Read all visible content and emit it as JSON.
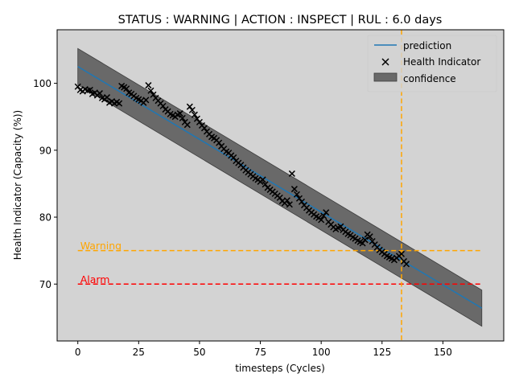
{
  "chart_data": {
    "type": "scatter",
    "title": "STATUS : WARNING | ACTION : INSPECT | RUL : 6.0 days",
    "xlabel": "timesteps (Cycles)",
    "ylabel": "Health Indicator (Capacity (%))",
    "xlim": [
      -8.5,
      175
    ],
    "ylim": [
      61.5,
      108
    ],
    "xticks": [
      0,
      25,
      50,
      75,
      100,
      125,
      150
    ],
    "yticks": [
      70,
      80,
      90,
      100
    ],
    "background": "#d3d3d3",
    "grid": false,
    "legend_position": "top-right",
    "legend": {
      "prediction": "prediction",
      "health_indicator": "Health Indicator",
      "confidence": "confidence"
    },
    "prediction": {
      "name": "prediction",
      "color": "#1f77b4",
      "x": [
        0,
        166
      ],
      "y": [
        102.5,
        66.4
      ]
    },
    "confidence": {
      "name": "confidence",
      "color": "#696969",
      "x": [
        0,
        166
      ],
      "upper": [
        105.2,
        69.1
      ],
      "lower": [
        99.8,
        63.7
      ]
    },
    "thresholds": [
      {
        "label": "Warning",
        "value": 75,
        "color": "#ffa500",
        "x_start": 0,
        "x_end": 166
      },
      {
        "label": "Alarm",
        "value": 70,
        "color": "#ff0000",
        "x_start": 0,
        "x_end": 166
      }
    ],
    "rul_marker": {
      "x": 133,
      "color": "#ffa500"
    },
    "health_indicator": {
      "name": "Health Indicator",
      "marker": "x",
      "color": "#000000",
      "points": [
        [
          0,
          99.5
        ],
        [
          1,
          99
        ],
        [
          2,
          98.8
        ],
        [
          3,
          99.1
        ],
        [
          4,
          98.9
        ],
        [
          5,
          99
        ],
        [
          6,
          98.4
        ],
        [
          7,
          98.6
        ],
        [
          8,
          98.2
        ],
        [
          9,
          98.5
        ],
        [
          10,
          97.8
        ],
        [
          11,
          97.6
        ],
        [
          12,
          97.9
        ],
        [
          13,
          97.1
        ],
        [
          14,
          97.3
        ],
        [
          15,
          97
        ],
        [
          16,
          97.2
        ],
        [
          17,
          97
        ],
        [
          18,
          99.6
        ],
        [
          19,
          99.4
        ],
        [
          20,
          99.2
        ],
        [
          21,
          98.6
        ],
        [
          22,
          98.4
        ],
        [
          23,
          98.1
        ],
        [
          24,
          97.8
        ],
        [
          25,
          97.6
        ],
        [
          26,
          97.4
        ],
        [
          27,
          97.1
        ],
        [
          28,
          97.5
        ],
        [
          29,
          99.7
        ],
        [
          30,
          98.9
        ],
        [
          31,
          98.3
        ],
        [
          32,
          97.8
        ],
        [
          33,
          97.4
        ],
        [
          34,
          97
        ],
        [
          35,
          96.6
        ],
        [
          36,
          96.1
        ],
        [
          37,
          95.8
        ],
        [
          38,
          95.4
        ],
        [
          39,
          95.2
        ],
        [
          40,
          95
        ],
        [
          41,
          95.3
        ],
        [
          42,
          95.5
        ],
        [
          43,
          94.8
        ],
        [
          44,
          94.2
        ],
        [
          45,
          93.8
        ],
        [
          46,
          96.5
        ],
        [
          47,
          96
        ],
        [
          48,
          95.3
        ],
        [
          49,
          94.7
        ],
        [
          50,
          94.2
        ],
        [
          51,
          93.7
        ],
        [
          52,
          93.3
        ],
        [
          53,
          92.8
        ],
        [
          54,
          92.4
        ],
        [
          55,
          92
        ],
        [
          56,
          91.8
        ],
        [
          57,
          91.5
        ],
        [
          58,
          91.1
        ],
        [
          59,
          90.6
        ],
        [
          60,
          90.2
        ],
        [
          61,
          89.8
        ],
        [
          62,
          89.6
        ],
        [
          63,
          89.2
        ],
        [
          64,
          88.9
        ],
        [
          65,
          88.4
        ],
        [
          66,
          88.1
        ],
        [
          67,
          87.8
        ],
        [
          68,
          87.4
        ],
        [
          69,
          87
        ],
        [
          70,
          86.7
        ],
        [
          71,
          86.4
        ],
        [
          72,
          86.1
        ],
        [
          73,
          85.8
        ],
        [
          74,
          85.6
        ],
        [
          75,
          85.3
        ],
        [
          76,
          85.6
        ],
        [
          77,
          84.9
        ],
        [
          78,
          84.4
        ],
        [
          79,
          84.1
        ],
        [
          80,
          83.8
        ],
        [
          81,
          83.5
        ],
        [
          82,
          83.2
        ],
        [
          83,
          82.9
        ],
        [
          84,
          82.4
        ],
        [
          85,
          82.1
        ],
        [
          86,
          82.5
        ],
        [
          87,
          81.9
        ],
        [
          88,
          86.5
        ],
        [
          89,
          84.2
        ],
        [
          90,
          83.4
        ],
        [
          91,
          82.8
        ],
        [
          92,
          82.3
        ],
        [
          93,
          81.8
        ],
        [
          94,
          81.4
        ],
        [
          95,
          81
        ],
        [
          96,
          80.7
        ],
        [
          97,
          80.4
        ],
        [
          98,
          80.1
        ],
        [
          99,
          79.9
        ],
        [
          100,
          79.6
        ],
        [
          101,
          80.2
        ],
        [
          102,
          80.7
        ],
        [
          103,
          79.3
        ],
        [
          104,
          78.9
        ],
        [
          105,
          78.5
        ],
        [
          106,
          78.2
        ],
        [
          107,
          78.4
        ],
        [
          108,
          78.6
        ],
        [
          109,
          78.1
        ],
        [
          110,
          77.8
        ],
        [
          111,
          77.5
        ],
        [
          112,
          77.3
        ],
        [
          113,
          77
        ],
        [
          114,
          76.8
        ],
        [
          115,
          76.5
        ],
        [
          116,
          76.3
        ],
        [
          117,
          76.1
        ],
        [
          118,
          76.6
        ],
        [
          119,
          77.4
        ],
        [
          120,
          77.1
        ],
        [
          121,
          76.4
        ],
        [
          122,
          75.9
        ],
        [
          123,
          75.5
        ],
        [
          124,
          75.1
        ],
        [
          125,
          74.8
        ],
        [
          126,
          74.5
        ],
        [
          127,
          74.2
        ],
        [
          128,
          74
        ],
        [
          129,
          73.8
        ],
        [
          130,
          73.6
        ],
        [
          131,
          73.9
        ],
        [
          132,
          74.2
        ],
        [
          133,
          74.5
        ],
        [
          134,
          73.4
        ],
        [
          135,
          73
        ]
      ]
    }
  }
}
